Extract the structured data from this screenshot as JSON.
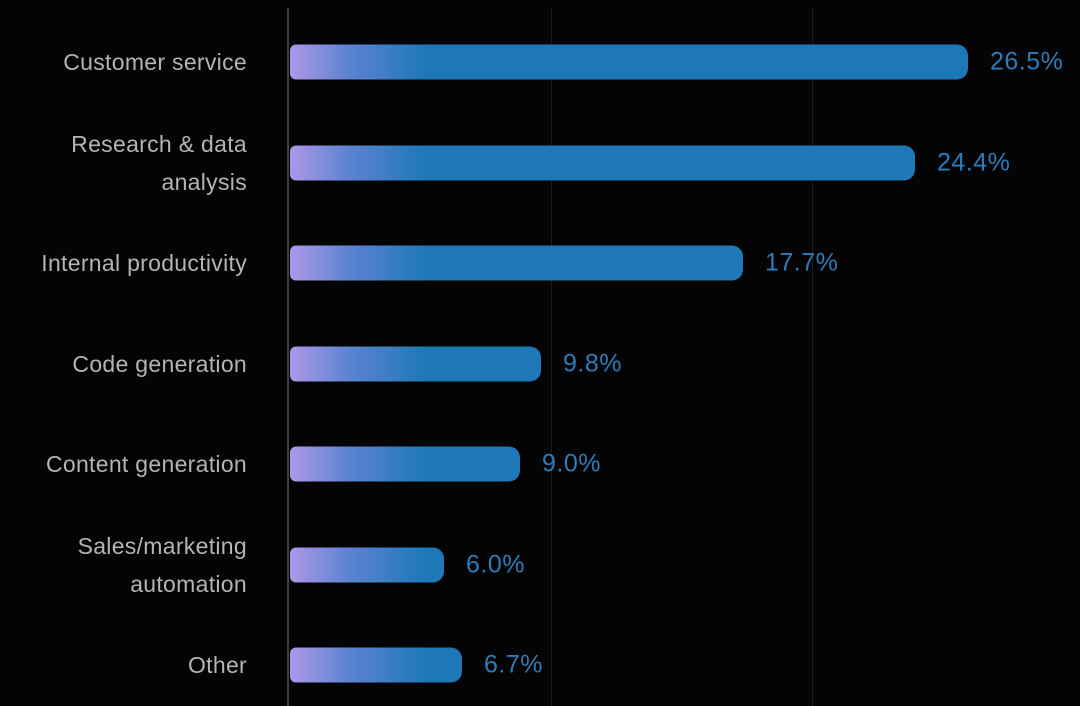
{
  "chart_data": {
    "type": "bar",
    "orientation": "horizontal",
    "title": "",
    "xlabel": "",
    "ylabel": "",
    "categories": [
      "Customer service",
      "Research & data analysis",
      "Internal productivity",
      "Code generation",
      "Content generation",
      "Sales/marketing automation",
      "Other"
    ],
    "category_lines": [
      [
        "Customer service"
      ],
      [
        "Research & data",
        "analysis"
      ],
      [
        "Internal productivity"
      ],
      [
        "Code generation"
      ],
      [
        "Content generation"
      ],
      [
        "Sales/marketing",
        "automation"
      ],
      [
        "Other"
      ]
    ],
    "values": [
      26.5,
      24.4,
      17.7,
      9.8,
      9.0,
      6.0,
      6.7
    ],
    "value_labels": [
      "26.5%",
      "24.4%",
      "17.7%",
      "9.8%",
      "9.0%",
      "6.0%",
      "6.7%"
    ],
    "xlim": [
      0,
      30
    ],
    "gridlines_pct": [
      0,
      10,
      20
    ],
    "grid": "vertical",
    "legend": "none",
    "colors": {
      "background": "#040404",
      "bar_gradient_start": "#ad97e8",
      "bar_gradient_end": "#1e78b8",
      "value_label": "#2b7cba",
      "category_label": "#b4b4b6",
      "axis_line": "#3e3e42",
      "gridline": "#1c1c20"
    }
  }
}
